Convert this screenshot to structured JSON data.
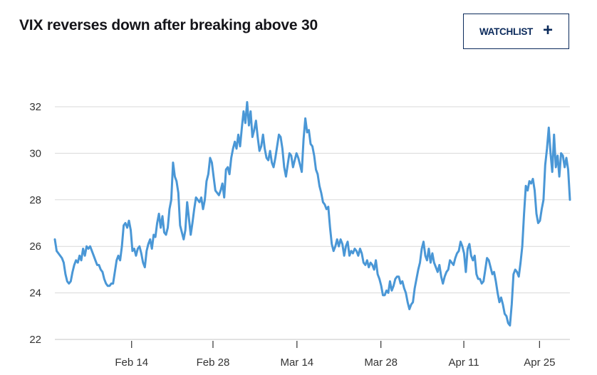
{
  "header": {
    "title": "VIX reverses down after breaking above 30",
    "watchlist_label": "WATCHLIST",
    "watchlist_icon": "plus-icon"
  },
  "colors": {
    "line": "#4a97d6",
    "grid": "#d9d9d9",
    "button_border": "#0b2a5b",
    "title": "#15151a"
  },
  "chart_data": {
    "type": "line",
    "title": "VIX reverses down after breaking above 30",
    "xlabel": "",
    "ylabel": "",
    "ylim": [
      22,
      32
    ],
    "yticks": [
      22,
      24,
      26,
      28,
      30,
      32
    ],
    "ytick_labels": [
      "22",
      "24",
      "26",
      "28",
      "30",
      "32"
    ],
    "xticks": [
      {
        "label": "Feb 14",
        "pos": 0.149
      },
      {
        "label": "Feb 28",
        "pos": 0.307
      },
      {
        "label": "Mar 14",
        "pos": 0.47
      },
      {
        "label": "Mar 28",
        "pos": 0.633
      },
      {
        "label": "Apr 11",
        "pos": 0.794
      },
      {
        "label": "Apr 25",
        "pos": 0.941
      }
    ],
    "grid": true,
    "legend": "none",
    "series": [
      {
        "name": "VIX",
        "values": [
          26.3,
          25.8,
          25.7,
          25.6,
          25.5,
          25.3,
          24.8,
          24.5,
          24.4,
          24.5,
          24.9,
          25.2,
          25.4,
          25.3,
          25.6,
          25.4,
          25.9,
          25.6,
          26.0,
          25.9,
          26.0,
          25.8,
          25.6,
          25.4,
          25.2,
          25.2,
          25.0,
          24.9,
          24.6,
          24.4,
          24.3,
          24.3,
          24.4,
          24.4,
          24.9,
          25.4,
          25.6,
          25.4,
          26.0,
          26.9,
          27.0,
          26.8,
          27.1,
          26.7,
          25.8,
          25.9,
          25.6,
          25.9,
          26.0,
          25.7,
          25.3,
          25.1,
          25.8,
          26.1,
          26.3,
          25.9,
          26.5,
          26.4,
          27.0,
          27.4,
          26.8,
          27.3,
          26.6,
          26.5,
          26.8,
          27.6,
          28.0,
          29.6,
          29.0,
          28.8,
          28.3,
          26.9,
          26.6,
          26.3,
          26.7,
          27.9,
          27.2,
          26.5,
          27.0,
          27.6,
          28.1,
          28.0,
          27.9,
          28.1,
          27.6,
          28.0,
          28.8,
          29.1,
          29.8,
          29.6,
          29.0,
          28.4,
          28.3,
          28.2,
          28.4,
          28.7,
          28.1,
          29.3,
          29.4,
          29.1,
          29.8,
          30.2,
          30.5,
          30.2,
          30.8,
          30.3,
          31.1,
          31.8,
          31.3,
          32.2,
          31.2,
          31.8,
          30.7,
          31.0,
          31.4,
          30.7,
          30.1,
          30.3,
          30.8,
          30.2,
          29.8,
          29.7,
          30.1,
          29.6,
          29.4,
          29.8,
          30.3,
          30.8,
          30.7,
          30.2,
          29.4,
          29.0,
          29.5,
          30.0,
          29.9,
          29.4,
          29.7,
          30.0,
          29.8,
          29.5,
          29.2,
          30.6,
          31.5,
          30.9,
          31.0,
          30.4,
          30.3,
          29.9,
          29.3,
          29.1,
          28.6,
          28.3,
          27.9,
          27.8,
          27.6,
          27.7,
          26.8,
          26.1,
          25.8,
          26.0,
          26.3,
          26.0,
          26.3,
          26.1,
          25.6,
          26.0,
          26.2,
          25.6,
          25.8,
          25.7,
          25.9,
          25.8,
          25.6,
          25.9,
          25.7,
          25.3,
          25.2,
          25.4,
          25.1,
          25.3,
          25.2,
          25.0,
          25.4,
          24.8,
          24.6,
          24.3,
          23.9,
          23.9,
          24.1,
          24.0,
          24.5,
          24.1,
          24.3,
          24.6,
          24.7,
          24.7,
          24.4,
          24.5,
          24.2,
          24.0,
          23.6,
          23.3,
          23.5,
          23.6,
          24.2,
          24.6,
          25.0,
          25.3,
          25.9,
          26.2,
          25.6,
          25.4,
          25.9,
          25.3,
          25.7,
          25.3,
          25.1,
          24.9,
          25.2,
          24.7,
          24.4,
          24.7,
          24.9,
          25.0,
          25.4,
          25.3,
          25.2,
          25.5,
          25.7,
          25.8,
          26.2,
          26.0,
          25.7,
          24.9,
          25.9,
          26.1,
          25.6,
          25.4,
          25.6,
          24.8,
          24.6,
          24.6,
          24.4,
          24.5,
          25.0,
          25.5,
          25.4,
          25.1,
          24.8,
          24.9,
          24.5,
          24.0,
          23.6,
          23.8,
          23.5,
          23.1,
          23.0,
          22.7,
          22.6,
          23.5,
          24.8,
          25.0,
          24.9,
          24.7,
          25.3,
          26.0,
          27.4,
          28.6,
          28.4,
          28.8,
          28.7,
          28.9,
          28.4,
          27.4,
          27.0,
          27.1,
          27.6,
          28.0,
          29.5,
          30.2,
          31.1,
          30.0,
          29.2,
          30.8,
          29.4,
          29.9,
          29.0,
          30.0,
          29.9,
          29.4,
          29.8,
          29.3,
          28.0
        ]
      }
    ]
  }
}
